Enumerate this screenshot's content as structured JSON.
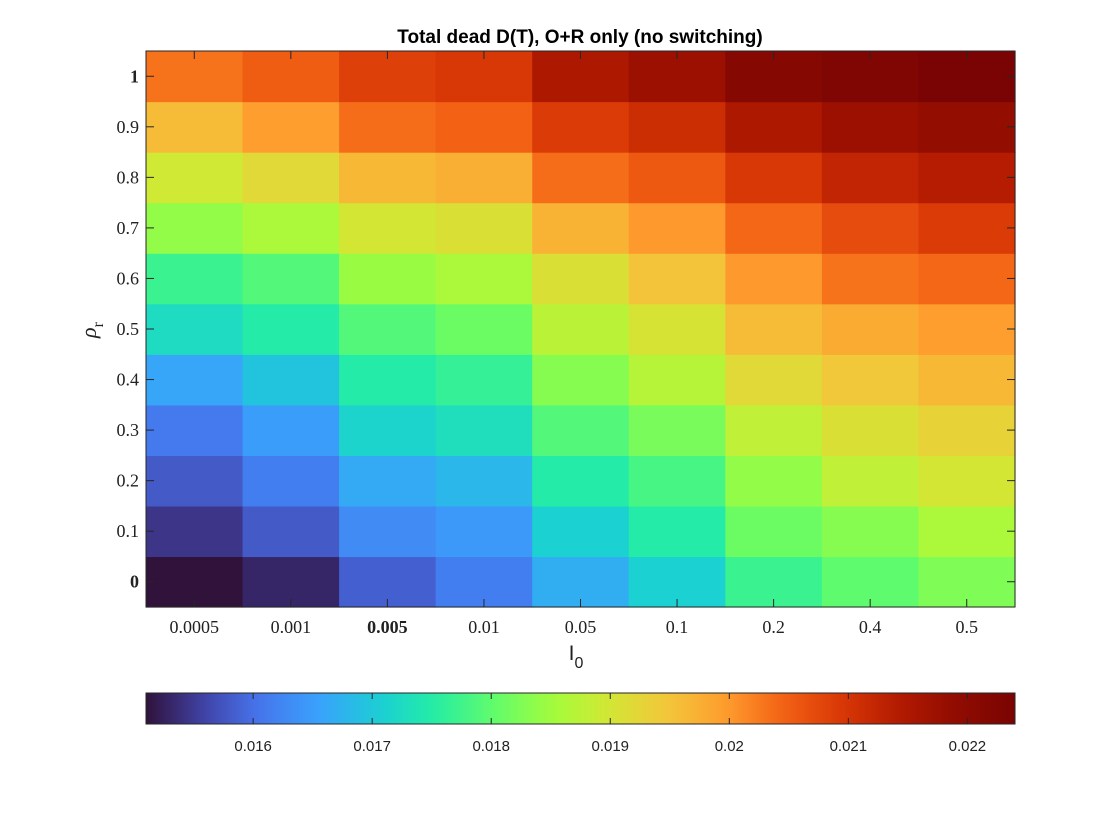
{
  "chart_data": {
    "type": "heatmap",
    "title": "Total dead D(T), O+R only (no switching)",
    "xlabel": {
      "base": "I",
      "sub": "0"
    },
    "ylabel": {
      "base": "ρ",
      "sub": "r"
    },
    "x_categories": [
      "0.0005",
      "0.001",
      "0.005",
      "0.01",
      "0.05",
      "0.1",
      "0.2",
      "0.4",
      "0.5"
    ],
    "x_bold_index": 2,
    "y_categories": [
      "0",
      "0.1",
      "0.2",
      "0.3",
      "0.4",
      "0.5",
      "0.6",
      "0.7",
      "0.8",
      "0.9",
      "1"
    ],
    "y_bold_indices": [
      0,
      10
    ],
    "values": [
      [
        0.01505,
        0.0153,
        0.01585,
        0.01615,
        0.0167,
        0.0171,
        0.0177,
        0.018,
        0.01825
      ],
      [
        0.01545,
        0.0158,
        0.0163,
        0.01645,
        0.0171,
        0.0175,
        0.0181,
        0.0183,
        0.0186
      ],
      [
        0.0158,
        0.01615,
        0.01665,
        0.0168,
        0.0175,
        0.0178,
        0.0184,
        0.0188,
        0.019
      ],
      [
        0.0161,
        0.0165,
        0.01715,
        0.0173,
        0.0179,
        0.0182,
        0.0188,
        0.0191,
        0.0193
      ],
      [
        0.0166,
        0.01695,
        0.0175,
        0.01765,
        0.0183,
        0.0187,
        0.0192,
        0.01945,
        0.01965
      ],
      [
        0.01725,
        0.0175,
        0.0179,
        0.0181,
        0.01875,
        0.01905,
        0.0196,
        0.0198,
        0.01995
      ],
      [
        0.0177,
        0.0179,
        0.01845,
        0.0186,
        0.0191,
        0.0195,
        0.02,
        0.0203,
        0.0204
      ],
      [
        0.0184,
        0.0186,
        0.019,
        0.0191,
        0.0197,
        0.02,
        0.0204,
        0.0207,
        0.0209
      ],
      [
        0.01895,
        0.0192,
        0.01965,
        0.01975,
        0.02035,
        0.02055,
        0.02095,
        0.02125,
        0.0214
      ],
      [
        0.0196,
        0.01995,
        0.02035,
        0.02045,
        0.0209,
        0.0211,
        0.0215,
        0.02175,
        0.02185
      ],
      [
        0.0203,
        0.0205,
        0.02085,
        0.02095,
        0.0215,
        0.02175,
        0.02215,
        0.0223,
        0.0224
      ]
    ],
    "colorbar": {
      "location": "bottom",
      "colormap": "turbo",
      "range": [
        0.0151,
        0.0224
      ],
      "ticks": [
        0.016,
        0.017,
        0.018,
        0.019,
        0.02,
        0.021,
        0.022
      ],
      "tick_labels": [
        "0.016",
        "0.017",
        "0.018",
        "0.019",
        "0.02",
        "0.021",
        "0.022"
      ]
    },
    "grid": false
  }
}
